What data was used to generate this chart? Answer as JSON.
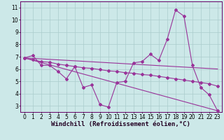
{
  "xlabel": "Windchill (Refroidissement éolien,°C)",
  "background_color": "#cce8e8",
  "grid_color": "#aacccc",
  "line_color": "#993399",
  "xlim": [
    -0.5,
    23.5
  ],
  "ylim": [
    2.5,
    11.5
  ],
  "yticks": [
    3,
    4,
    5,
    6,
    7,
    8,
    9,
    10,
    11
  ],
  "xticks": [
    0,
    1,
    2,
    3,
    4,
    5,
    6,
    7,
    8,
    9,
    10,
    11,
    12,
    13,
    14,
    15,
    16,
    17,
    18,
    19,
    20,
    21,
    22,
    23
  ],
  "series1_x": [
    0,
    1,
    2,
    3,
    4,
    5,
    6,
    7,
    8,
    9,
    10,
    11,
    12,
    13,
    14,
    15,
    16,
    17,
    18,
    19,
    20,
    21,
    22,
    23
  ],
  "series1_y": [
    6.9,
    7.1,
    6.3,
    6.3,
    5.8,
    5.2,
    6.2,
    4.5,
    4.7,
    3.1,
    2.9,
    4.9,
    5.0,
    6.5,
    6.6,
    7.2,
    6.7,
    8.4,
    10.8,
    10.3,
    6.3,
    4.5,
    3.9,
    2.6
  ],
  "series2_x": [
    0,
    23
  ],
  "series2_y": [
    6.9,
    6.0
  ],
  "series3_x": [
    0,
    1,
    2,
    3,
    4,
    5,
    6,
    7,
    8,
    9,
    10,
    11,
    12,
    13,
    14,
    15,
    16,
    17,
    18,
    19,
    20,
    21,
    22,
    23
  ],
  "series3_y": [
    6.9,
    6.75,
    6.6,
    6.55,
    6.4,
    6.3,
    6.2,
    6.1,
    6.05,
    5.95,
    5.85,
    5.8,
    5.7,
    5.65,
    5.55,
    5.5,
    5.4,
    5.3,
    5.2,
    5.1,
    5.0,
    4.9,
    4.8,
    4.6
  ],
  "series4_x": [
    0,
    23
  ],
  "series4_y": [
    6.9,
    2.6
  ],
  "marker": "D",
  "markersize": 2.0,
  "linewidth": 0.8,
  "xlabel_fontsize": 6.5,
  "tick_fontsize": 5.5
}
